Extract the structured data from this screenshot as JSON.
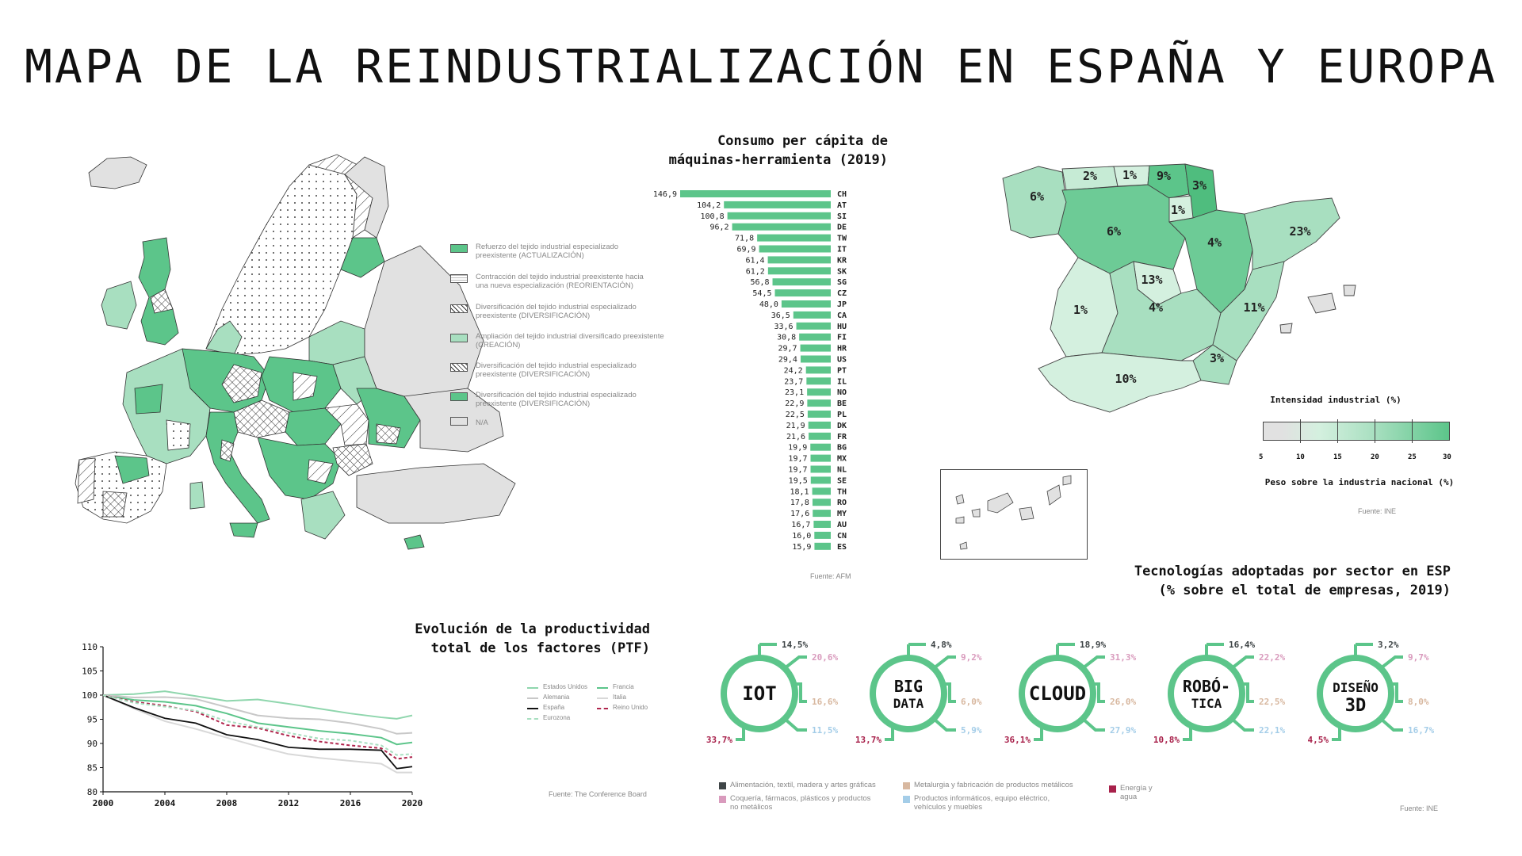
{
  "title": "MAPA DE LA REINDUSTRIALIZACIÓN EN ESPAÑA Y EUROPA",
  "colors": {
    "green_dark": "#5cc58a",
    "green_light": "#a8dfc0",
    "green_pale": "#d4f0df",
    "na": "#e1e1e1",
    "accent": "#5cc58a"
  },
  "europe_map": {
    "legend": [
      {
        "line1": "Refuerzo del tejido industrial especializado",
        "line2": "preexistente (ACTUALIZACIÓN)",
        "pattern": "green-dark"
      },
      {
        "line1": "Contracción del tejido industrial preexistente hacia",
        "line2": "una nueva especialización (REORIENTACIÓN)",
        "pattern": "dots"
      },
      {
        "line1": "Diversificación del tejido industrial especializado",
        "line2": "preexistente (DIVERSIFICACIÓN)",
        "pattern": "hatch"
      },
      {
        "line1": "Ampliación del tejido industrial diversificado preexistente",
        "line2": "(CREACIÓN)",
        "pattern": "green-light"
      },
      {
        "line1": "Diversificación del tejido industrial especializado",
        "line2": "preexistente (DIVERSIFICACIÓN)",
        "pattern": "crosshatch"
      },
      {
        "line1": "Diversificación del tejido industrial especializado",
        "line2": "preexistente (DIVERSIFICACIÓN)",
        "pattern": "green-dark"
      },
      {
        "line1": "N/A",
        "line2": "",
        "pattern": "na"
      }
    ]
  },
  "bar_chart": {
    "title_line1": "Consumo per cápita de",
    "title_line2": "máquinas-herramienta (2019)",
    "source": "Fuente: AFM",
    "chart_data": {
      "type": "bar",
      "orientation": "horizontal",
      "categories": [
        "CH",
        "AT",
        "SI",
        "DE",
        "TW",
        "IT",
        "KR",
        "SK",
        "SG",
        "CZ",
        "JP",
        "CA",
        "HU",
        "FI",
        "HR",
        "US",
        "PT",
        "IL",
        "NO",
        "BE",
        "PL",
        "DK",
        "FR",
        "BG",
        "MX",
        "NL",
        "SE",
        "TH",
        "RO",
        "MY",
        "AU",
        "CN",
        "ES"
      ],
      "values": [
        146.9,
        104.2,
        100.8,
        96.2,
        71.8,
        69.9,
        61.4,
        61.2,
        56.8,
        54.5,
        48.0,
        36.5,
        33.6,
        30.8,
        29.7,
        29.4,
        24.2,
        23.7,
        23.1,
        22.9,
        22.5,
        21.9,
        21.6,
        19.9,
        19.7,
        19.7,
        19.5,
        18.1,
        17.8,
        17.6,
        16.7,
        16.0,
        15.9
      ],
      "labels": [
        "146,9",
        "104,2",
        "100,8",
        "96,2",
        "71,8",
        "69,9",
        "61,4",
        "61,2",
        "56,8",
        "54,5",
        "48,0",
        "36,5",
        "33,6",
        "30,8",
        "29,7",
        "29,4",
        "24,2",
        "23,7",
        "23,1",
        "22,9",
        "22,5",
        "21,9",
        "21,6",
        "19,9",
        "19,7",
        "19,7",
        "19,5",
        "18,1",
        "17,8",
        "17,6",
        "16,7",
        "16,0",
        "15,9"
      ],
      "color": "#5cc58a"
    }
  },
  "spain_map": {
    "regions": [
      {
        "name": "galicia",
        "label": "6%"
      },
      {
        "name": "asturias",
        "label": "2%"
      },
      {
        "name": "cantabria",
        "label": "1%"
      },
      {
        "name": "pais-vasco",
        "label": "9%"
      },
      {
        "name": "navarra",
        "label": "3%"
      },
      {
        "name": "la-rioja",
        "label": "1%"
      },
      {
        "name": "castilla-leon",
        "label": "6%"
      },
      {
        "name": "aragon",
        "label": "4%"
      },
      {
        "name": "cataluna",
        "label": "23%"
      },
      {
        "name": "madrid",
        "label": "13%"
      },
      {
        "name": "extremadura",
        "label": "1%"
      },
      {
        "name": "castilla-la-mancha",
        "label": "4%"
      },
      {
        "name": "valencia",
        "label": "11%"
      },
      {
        "name": "murcia",
        "label": "3%"
      },
      {
        "name": "andalucia",
        "label": "10%"
      }
    ],
    "legend_title": "Intensidad industrial (%)",
    "legend_ticks": [
      "5",
      "10",
      "15",
      "20",
      "25",
      "30"
    ],
    "legend_subtitle": "Peso sobre la industria nacional (%)",
    "source": "Fuente: INE"
  },
  "line_chart": {
    "title_line1": "Evolución de la productividad",
    "title_line2": "total de los factores (PTF)",
    "source": "Fuente: The Conference Board",
    "chart_data": {
      "type": "line",
      "x": [
        2000,
        2002,
        2004,
        2006,
        2008,
        2010,
        2012,
        2014,
        2016,
        2018,
        2019,
        2020
      ],
      "xticks": [
        "2000",
        "2004",
        "2008",
        "2012",
        "2016",
        "2020"
      ],
      "yticks": [
        "110",
        "105",
        "100",
        "95",
        "90",
        "85",
        "80"
      ],
      "ylim": [
        80,
        110
      ],
      "series": [
        {
          "name": "Estados Unidos",
          "color": "#8fd6ad",
          "dash": "",
          "values": [
            100,
            100.2,
            100.8,
            99.8,
            98.8,
            99.1,
            98.2,
            97.2,
            96.2,
            95.4,
            95.1,
            95.8
          ]
        },
        {
          "name": "Francia",
          "color": "#5cc58a",
          "dash": "",
          "values": [
            100,
            99.0,
            98.6,
            97.8,
            96.2,
            94.2,
            93.4,
            92.6,
            92.0,
            91.2,
            89.8,
            90.2
          ]
        },
        {
          "name": "Alemania",
          "color": "#c8c8c8",
          "dash": "",
          "values": [
            100,
            99.5,
            99.6,
            99.2,
            97.5,
            95.8,
            95.2,
            95.0,
            94.2,
            93.0,
            92.0,
            92.2
          ]
        },
        {
          "name": "Italia",
          "color": "#d8d8d8",
          "dash": "",
          "values": [
            100,
            97.2,
            94.6,
            93.0,
            91.2,
            89.4,
            87.8,
            87.0,
            86.4,
            85.8,
            84.0,
            84.0
          ]
        },
        {
          "name": "España",
          "color": "#111111",
          "dash": "",
          "values": [
            100,
            97.4,
            95.2,
            94.2,
            91.8,
            90.8,
            89.2,
            88.8,
            88.8,
            88.6,
            84.8,
            85.2
          ]
        },
        {
          "name": "Reino Unido",
          "color": "#b0264d",
          "dash": "4,3",
          "values": [
            100,
            98.6,
            97.8,
            96.6,
            93.8,
            93.2,
            91.6,
            90.4,
            89.6,
            89.0,
            86.8,
            87.2
          ]
        },
        {
          "name": "Eurozona",
          "color": "#a8dfc0",
          "dash": "4,3",
          "values": [
            100,
            98.4,
            97.6,
            96.8,
            94.6,
            93.4,
            92.2,
            91.0,
            90.6,
            89.6,
            87.6,
            87.8
          ]
        }
      ]
    }
  },
  "tech_chart": {
    "title_line1": "Tecnologías adoptadas por sector en ESP",
    "title_line2": "(% sobre el total de empresas, 2019)",
    "source": "Fuente: INE",
    "sectors": [
      {
        "name": "Alimentación, textil, madera y artes gráficas",
        "color": "#3f4547"
      },
      {
        "name": "Coquería, fármacos, plásticos y productos",
        "name2": "no metálicos",
        "color": "#d99bbd"
      },
      {
        "name": "Metalurgia y fabricación de productos metálicos",
        "color": "#d8b8a0"
      },
      {
        "name": "Productos informáticos, equipo eléctrico,",
        "name2": "vehículos y muebles",
        "color": "#a4cde8"
      },
      {
        "name": "Energía y agua",
        "color": "#a8214b"
      }
    ],
    "technologies": [
      {
        "line1": "IOT",
        "line2": "",
        "values": [
          "14,5%",
          "20,6%",
          "16,6%",
          "11,5%",
          "33,7%"
        ]
      },
      {
        "line1": "BIG",
        "line2": "DATA",
        "values": [
          "4,8%",
          "9,2%",
          "6,0%",
          "5,9%",
          "13,7%"
        ]
      },
      {
        "line1": "CLOUD",
        "line2": "",
        "values": [
          "18,9%",
          "31,3%",
          "26,0%",
          "27,9%",
          "36,1%"
        ]
      },
      {
        "line1": "ROBÓ-",
        "line2": "TICA",
        "values": [
          "16,4%",
          "22,2%",
          "22,5%",
          "22,1%",
          "10,8%"
        ]
      },
      {
        "line1": "DISEÑO",
        "line2": "3D",
        "values": [
          "3,2%",
          "9,7%",
          "8,0%",
          "16,7%",
          "4,5%"
        ]
      }
    ]
  }
}
